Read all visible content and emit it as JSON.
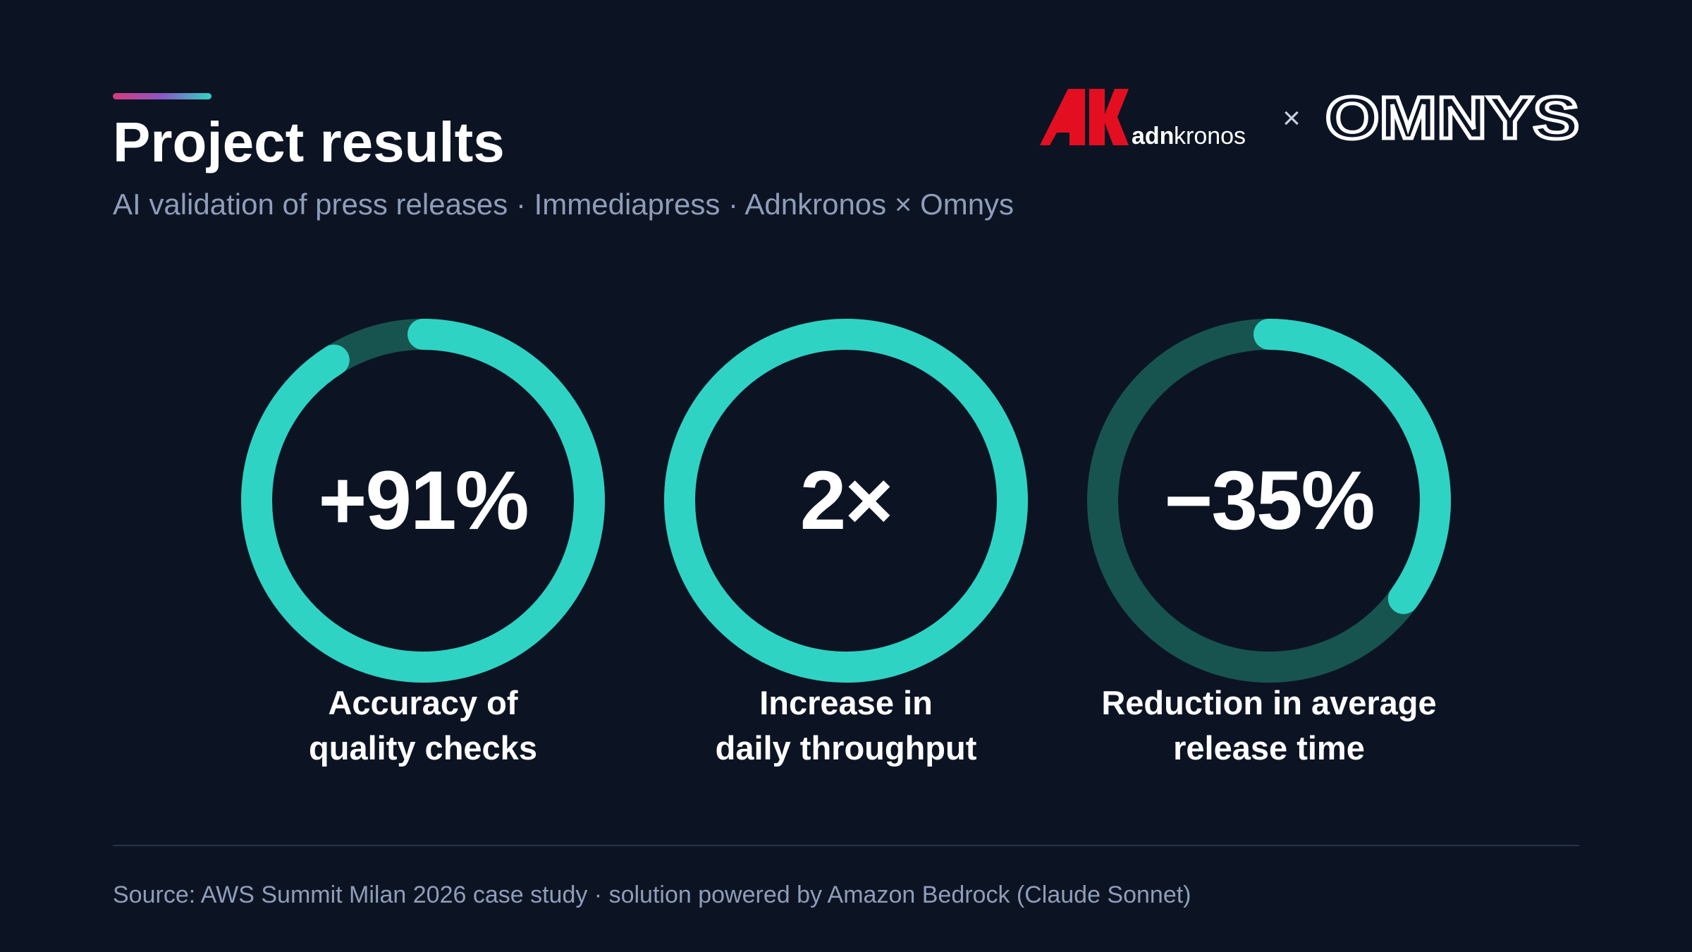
{
  "slide": {
    "title": "Project results",
    "subtitle": "AI validation of press releases · Immediapress · Adnkronos × Omnys",
    "source": "Source: AWS Summit Milan 2026 case study · solution powered by Amazon Bedrock (Claude Sonnet)"
  },
  "logos": {
    "partner_one": {
      "name": "Adnkronos",
      "mark_text": "AK",
      "wordmark_bold": "adn",
      "wordmark_regular": "kronos",
      "color": "#e30f20"
    },
    "separator": "×",
    "partner_two": {
      "name": "Omnys",
      "wordmark": "OMNYS"
    }
  },
  "theme": {
    "background": "#0c1424",
    "ring_fill": "#2fd3c3",
    "ring_track": "#17544f",
    "text_primary": "#ffffff",
    "text_muted": "#8f9db8"
  },
  "kpis": [
    {
      "value": "+91%",
      "label_line1": "Accuracy of",
      "label_line2": "quality checks",
      "progress": 0.91
    },
    {
      "value": "2×",
      "label_line1": "Increase in",
      "label_line2": "daily throughput",
      "progress": 1.0
    },
    {
      "value": "−35%",
      "label_line1": "Reduction in average",
      "label_line2": "release time",
      "progress": 0.35
    }
  ]
}
